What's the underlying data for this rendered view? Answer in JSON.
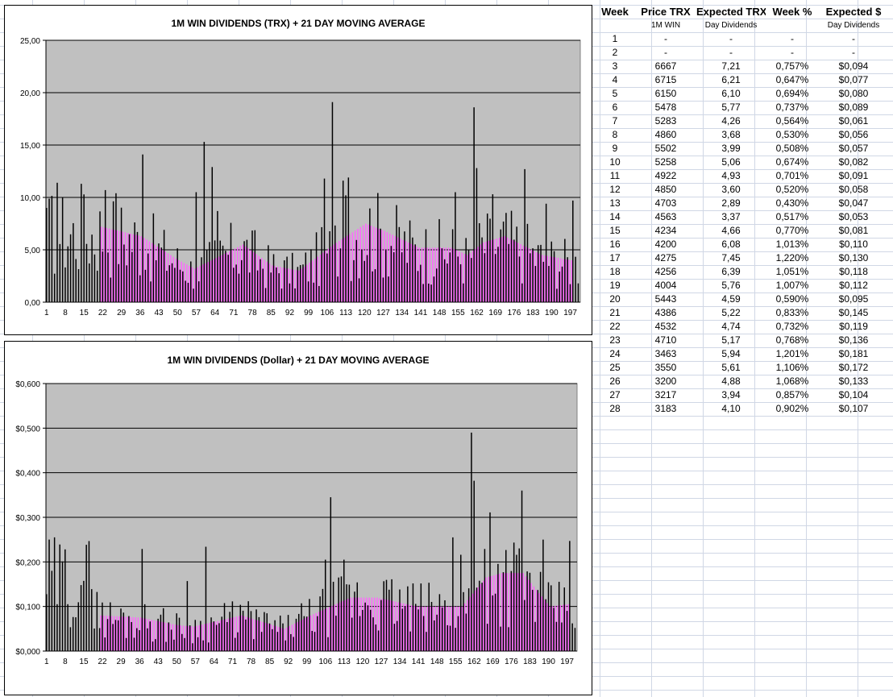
{
  "charts": [
    {
      "id": "trx",
      "title": "1M WIN DIVIDENDS (TRX) + 21 DAY MOVING AVERAGE",
      "y_tick_labels": [
        "0,00",
        "5,00",
        "10,00",
        "15,00",
        "20,00",
        "25,00"
      ],
      "x_tick_labels": [
        "1",
        "8",
        "15",
        "22",
        "29",
        "36",
        "43",
        "50",
        "57",
        "64",
        "71",
        "78",
        "85",
        "92",
        "99",
        "106",
        "113",
        "120",
        "127",
        "134",
        "141",
        "148",
        "155",
        "162",
        "169",
        "176",
        "183",
        "190",
        "197"
      ]
    },
    {
      "id": "dollar",
      "title": "1M WIN DIVIDENDS (Dollar) + 21 DAY MOVING AVERAGE",
      "y_tick_labels": [
        "$0,000",
        "$0,100",
        "$0,200",
        "$0,300",
        "$0,400",
        "$0,500",
        "$0,600"
      ],
      "x_tick_labels": [
        "1",
        "8",
        "15",
        "22",
        "29",
        "36",
        "43",
        "50",
        "57",
        "64",
        "71",
        "78",
        "85",
        "92",
        "99",
        "106",
        "113",
        "120",
        "127",
        "134",
        "141",
        "148",
        "155",
        "162",
        "169",
        "176",
        "183",
        "190",
        "197"
      ]
    }
  ],
  "chart_data": [
    {
      "type": "bar",
      "title": "1M WIN DIVIDENDS (TRX) + 21 DAY MOVING AVERAGE",
      "xlabel": "",
      "ylabel": "",
      "ylim": [
        0,
        25
      ],
      "x_range": [
        1,
        200
      ],
      "grid": true,
      "colors": {
        "daily": "#000000",
        "moving_average": "#ff66ff",
        "plot_bg": "#c0c0c0"
      },
      "peaks": [
        {
          "day": 1,
          "value": 9.0
        },
        {
          "day": 5,
          "value": 11.4
        },
        {
          "day": 14,
          "value": 11.3
        },
        {
          "day": 23,
          "value": 10.7
        },
        {
          "day": 27,
          "value": 10.4
        },
        {
          "day": 37,
          "value": 14.1
        },
        {
          "day": 57,
          "value": 10.5
        },
        {
          "day": 60,
          "value": 15.3
        },
        {
          "day": 63,
          "value": 12.9
        },
        {
          "day": 65,
          "value": 8.7
        },
        {
          "day": 105,
          "value": 11.8
        },
        {
          "day": 108,
          "value": 19.1
        },
        {
          "day": 112,
          "value": 11.6
        },
        {
          "day": 113,
          "value": 10.2
        },
        {
          "day": 114,
          "value": 11.9
        },
        {
          "day": 154,
          "value": 10.5
        },
        {
          "day": 161,
          "value": 18.6
        },
        {
          "day": 162,
          "value": 12.8
        },
        {
          "day": 168,
          "value": 10.3
        },
        {
          "day": 180,
          "value": 12.7
        },
        {
          "day": 188,
          "value": 9.4
        },
        {
          "day": 198,
          "value": 9.7
        }
      ],
      "moving_average_anchors": [
        {
          "day": 21,
          "value": 7.2
        },
        {
          "day": 36,
          "value": 6.3
        },
        {
          "day": 50,
          "value": 4.0
        },
        {
          "day": 56,
          "value": 3.2
        },
        {
          "day": 74,
          "value": 5.5
        },
        {
          "day": 85,
          "value": 3.5
        },
        {
          "day": 95,
          "value": 3.0
        },
        {
          "day": 108,
          "value": 5.5
        },
        {
          "day": 120,
          "value": 7.5
        },
        {
          "day": 127,
          "value": 6.8
        },
        {
          "day": 140,
          "value": 5.2
        },
        {
          "day": 152,
          "value": 5.2
        },
        {
          "day": 158,
          "value": 4.5
        },
        {
          "day": 164,
          "value": 5.7
        },
        {
          "day": 172,
          "value": 6.3
        },
        {
          "day": 186,
          "value": 4.5
        },
        {
          "day": 197,
          "value": 4.0
        }
      ]
    },
    {
      "type": "bar",
      "title": "1M WIN DIVIDENDS (Dollar) + 21 DAY MOVING AVERAGE",
      "xlabel": "",
      "ylabel": "",
      "ylim": [
        0,
        0.6
      ],
      "x_range": [
        1,
        200
      ],
      "grid": true,
      "colors": {
        "daily": "#000000",
        "moving_average": "#ff66ff",
        "plot_bg": "#c0c0c0"
      },
      "peaks": [
        {
          "day": 14,
          "value": 0.148
        },
        {
          "day": 37,
          "value": 0.229
        },
        {
          "day": 54,
          "value": 0.157
        },
        {
          "day": 61,
          "value": 0.234
        },
        {
          "day": 106,
          "value": 0.205
        },
        {
          "day": 108,
          "value": 0.345
        },
        {
          "day": 113,
          "value": 0.205
        },
        {
          "day": 154,
          "value": 0.255
        },
        {
          "day": 157,
          "value": 0.216
        },
        {
          "day": 161,
          "value": 0.49
        },
        {
          "day": 162,
          "value": 0.382
        },
        {
          "day": 166,
          "value": 0.229
        },
        {
          "day": 168,
          "value": 0.311
        },
        {
          "day": 180,
          "value": 0.36
        },
        {
          "day": 188,
          "value": 0.25
        },
        {
          "day": 198,
          "value": 0.247
        }
      ],
      "moving_average_anchors": [
        {
          "day": 21,
          "value": 0.08
        },
        {
          "day": 36,
          "value": 0.075
        },
        {
          "day": 50,
          "value": 0.058
        },
        {
          "day": 56,
          "value": 0.055
        },
        {
          "day": 74,
          "value": 0.08
        },
        {
          "day": 90,
          "value": 0.05
        },
        {
          "day": 100,
          "value": 0.08
        },
        {
          "day": 115,
          "value": 0.12
        },
        {
          "day": 125,
          "value": 0.12
        },
        {
          "day": 140,
          "value": 0.1
        },
        {
          "day": 157,
          "value": 0.1
        },
        {
          "day": 166,
          "value": 0.165
        },
        {
          "day": 172,
          "value": 0.175
        },
        {
          "day": 180,
          "value": 0.175
        },
        {
          "day": 190,
          "value": 0.1
        },
        {
          "day": 197,
          "value": 0.105
        }
      ]
    }
  ],
  "table": {
    "headers": [
      "Week",
      "Price TRX",
      "Expected TRX",
      "Week %",
      "Expected $"
    ],
    "subheaders": [
      "",
      "1M WIN",
      "Day Dividends",
      "",
      "Day Dividends"
    ],
    "rows": [
      [
        "1",
        "-",
        "-",
        "-",
        "-"
      ],
      [
        "2",
        "-",
        "-",
        "-",
        "-"
      ],
      [
        "3",
        "6667",
        "7,21",
        "0,757%",
        "$0,094"
      ],
      [
        "4",
        "6715",
        "6,21",
        "0,647%",
        "$0,077"
      ],
      [
        "5",
        "6150",
        "6,10",
        "0,694%",
        "$0,080"
      ],
      [
        "6",
        "5478",
        "5,77",
        "0,737%",
        "$0,089"
      ],
      [
        "7",
        "5283",
        "4,26",
        "0,564%",
        "$0,061"
      ],
      [
        "8",
        "4860",
        "3,68",
        "0,530%",
        "$0,056"
      ],
      [
        "9",
        "5502",
        "3,99",
        "0,508%",
        "$0,057"
      ],
      [
        "10",
        "5258",
        "5,06",
        "0,674%",
        "$0,082"
      ],
      [
        "11",
        "4922",
        "4,93",
        "0,701%",
        "$0,091"
      ],
      [
        "12",
        "4850",
        "3,60",
        "0,520%",
        "$0,058"
      ],
      [
        "13",
        "4703",
        "2,89",
        "0,430%",
        "$0,047"
      ],
      [
        "14",
        "4563",
        "3,37",
        "0,517%",
        "$0,053"
      ],
      [
        "15",
        "4234",
        "4,66",
        "0,770%",
        "$0,081"
      ],
      [
        "16",
        "4200",
        "6,08",
        "1,013%",
        "$0,110"
      ],
      [
        "17",
        "4275",
        "7,45",
        "1,220%",
        "$0,130"
      ],
      [
        "18",
        "4256",
        "6,39",
        "1,051%",
        "$0,118"
      ],
      [
        "19",
        "4004",
        "5,76",
        "1,007%",
        "$0,112"
      ],
      [
        "20",
        "5443",
        "4,59",
        "0,590%",
        "$0,095"
      ],
      [
        "21",
        "4386",
        "5,22",
        "0,833%",
        "$0,145"
      ],
      [
        "22",
        "4532",
        "4,74",
        "0,732%",
        "$0,119"
      ],
      [
        "23",
        "4710",
        "5,17",
        "0,768%",
        "$0,136"
      ],
      [
        "24",
        "3463",
        "5,94",
        "1,201%",
        "$0,181"
      ],
      [
        "25",
        "3550",
        "5,61",
        "1,106%",
        "$0,172"
      ],
      [
        "26",
        "3200",
        "4,88",
        "1,068%",
        "$0,133"
      ],
      [
        "27",
        "3217",
        "3,94",
        "0,857%",
        "$0,104"
      ],
      [
        "28",
        "3183",
        "4,10",
        "0,902%",
        "$0,107"
      ]
    ]
  }
}
